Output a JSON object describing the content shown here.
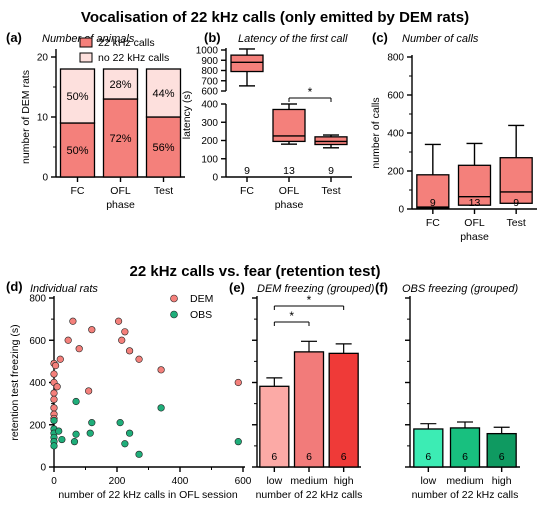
{
  "texts": {
    "title_top": "Vocalisation of 22 kHz calls (only emitted by DEM rats)",
    "title_bottom": "22 kHz calls vs. fear (retention test)"
  },
  "chart_data": [
    {
      "id": "a",
      "type": "bar",
      "stacked": true,
      "panel_label": "(a)",
      "subtitle": "Number of animals",
      "categories": [
        "FC",
        "OFL",
        "Test"
      ],
      "series": [
        {
          "name": "22 kHz calls",
          "values": [
            9,
            13,
            10
          ],
          "pct": [
            "50%",
            "72%",
            "56%"
          ],
          "color": "#f4807b"
        },
        {
          "name": "no 22 kHz calls",
          "values": [
            9,
            5,
            8
          ],
          "pct": [
            "50%",
            "28%",
            "44%"
          ],
          "color": "#fde0dd"
        }
      ],
      "ylabel": "number of DEM rats",
      "xlabel": "phase",
      "ylim": [
        0,
        20
      ],
      "yticks": [
        "0",
        "10",
        "20"
      ],
      "legend": "top-right"
    },
    {
      "id": "b",
      "type": "box",
      "panel_label": "(b)",
      "subtitle": "Latency of the first call",
      "categories": [
        "FC",
        "OFL",
        "Test"
      ],
      "boxes": [
        {
          "min": 650,
          "q1": 790,
          "median": 880,
          "q3": 950,
          "max": 1010
        },
        {
          "min": 180,
          "q1": 195,
          "median": 225,
          "q3": 370,
          "max": 400
        },
        {
          "min": 160,
          "q1": 178,
          "median": 195,
          "q3": 220,
          "max": 230
        }
      ],
      "n": [
        "9",
        "13",
        "9"
      ],
      "ylabel": "latency (s)",
      "xlabel": "phase",
      "axis_break": {
        "lower": [
          0,
          400
        ],
        "upper": [
          600,
          1000
        ]
      },
      "yticks_lower": [
        "0",
        "100",
        "200",
        "300",
        "400"
      ],
      "yticks_upper": [
        "600",
        "700",
        "800",
        "900",
        "1000"
      ],
      "significance": [
        {
          "between": [
            "OFL",
            "Test"
          ],
          "label": "*"
        }
      ],
      "color": "#f4807b"
    },
    {
      "id": "c",
      "type": "box",
      "panel_label": "(c)",
      "subtitle": "Number of calls",
      "categories": [
        "FC",
        "OFL",
        "Test"
      ],
      "boxes": [
        {
          "min": 0,
          "q1": 5,
          "median": 10,
          "q3": 180,
          "max": 340
        },
        {
          "min": 0,
          "q1": 20,
          "median": 65,
          "q3": 230,
          "max": 345
        },
        {
          "min": 0,
          "q1": 30,
          "median": 90,
          "q3": 270,
          "max": 440
        }
      ],
      "n": [
        "9",
        "13",
        "9"
      ],
      "ylabel": "number of calls",
      "xlabel": "phase",
      "ylim": [
        0,
        800
      ],
      "yticks": [
        "0",
        "200",
        "400",
        "600",
        "800"
      ],
      "color": "#f4807b"
    },
    {
      "id": "d",
      "type": "scatter",
      "panel_label": "(d)",
      "subtitle": "Individual rats",
      "xlabel": "number of 22 kHz calls in OFL session",
      "ylabel": "retention test freezing (s)",
      "xlim": [
        0,
        600
      ],
      "ylim": [
        0,
        800
      ],
      "xticks": [
        "0",
        "200",
        "400",
        "600"
      ],
      "yticks": [
        "0",
        "200",
        "400",
        "600",
        "800"
      ],
      "legend": "top-right",
      "series": [
        {
          "name": "DEM",
          "color": "#f4807b",
          "points": [
            [
              0,
              490
            ],
            [
              0,
              440
            ],
            [
              0,
              400
            ],
            [
              0,
              350
            ],
            [
              0,
              320
            ],
            [
              0,
              280
            ],
            [
              0,
              250
            ],
            [
              0,
              230
            ],
            [
              5,
              480
            ],
            [
              10,
              380
            ],
            [
              20,
              510
            ],
            [
              45,
              600
            ],
            [
              60,
              690
            ],
            [
              80,
              560
            ],
            [
              110,
              360
            ],
            [
              120,
              650
            ],
            [
              205,
              690
            ],
            [
              215,
              600
            ],
            [
              225,
              640
            ],
            [
              240,
              550
            ],
            [
              270,
              510
            ],
            [
              340,
              460
            ],
            [
              585,
              400
            ]
          ]
        },
        {
          "name": "OBS",
          "color": "#1fae7a",
          "points": [
            [
              0,
              220
            ],
            [
              0,
              180
            ],
            [
              0,
              160
            ],
            [
              0,
              140
            ],
            [
              0,
              120
            ],
            [
              0,
              100
            ],
            [
              15,
              170
            ],
            [
              25,
              130
            ],
            [
              65,
              120
            ],
            [
              70,
              155
            ],
            [
              70,
              310
            ],
            [
              115,
              160
            ],
            [
              120,
              210
            ],
            [
              210,
              210
            ],
            [
              225,
              110
            ],
            [
              240,
              160
            ],
            [
              270,
              60
            ],
            [
              340,
              280
            ],
            [
              585,
              120
            ]
          ]
        }
      ]
    },
    {
      "id": "e",
      "type": "bar",
      "panel_label": "(e)",
      "subtitle": "DEM freezing (grouped)",
      "categories": [
        "low",
        "medium",
        "high"
      ],
      "values": [
        382,
        545,
        538
      ],
      "errors": [
        40,
        50,
        45
      ],
      "colors": [
        "#fcaaa6",
        "#f27b7a",
        "#ef3a38"
      ],
      "n": [
        "6",
        "6",
        "6"
      ],
      "xlabel": "number of 22 kHz calls",
      "ylim": [
        0,
        800
      ],
      "significance": [
        {
          "between": [
            "low",
            "medium"
          ],
          "label": "*"
        },
        {
          "between": [
            "low",
            "high"
          ],
          "label": "*"
        }
      ]
    },
    {
      "id": "f",
      "type": "bar",
      "panel_label": "(f)",
      "subtitle": "OBS freezing (grouped)",
      "categories": [
        "low",
        "medium",
        "high"
      ],
      "values": [
        180,
        185,
        158
      ],
      "errors": [
        25,
        28,
        30
      ],
      "colors": [
        "#3cecb4",
        "#18c07f",
        "#0f9a61"
      ],
      "n": [
        "6",
        "6",
        "6"
      ],
      "xlabel": "number of 22 kHz calls",
      "ylim": [
        0,
        800
      ]
    }
  ]
}
